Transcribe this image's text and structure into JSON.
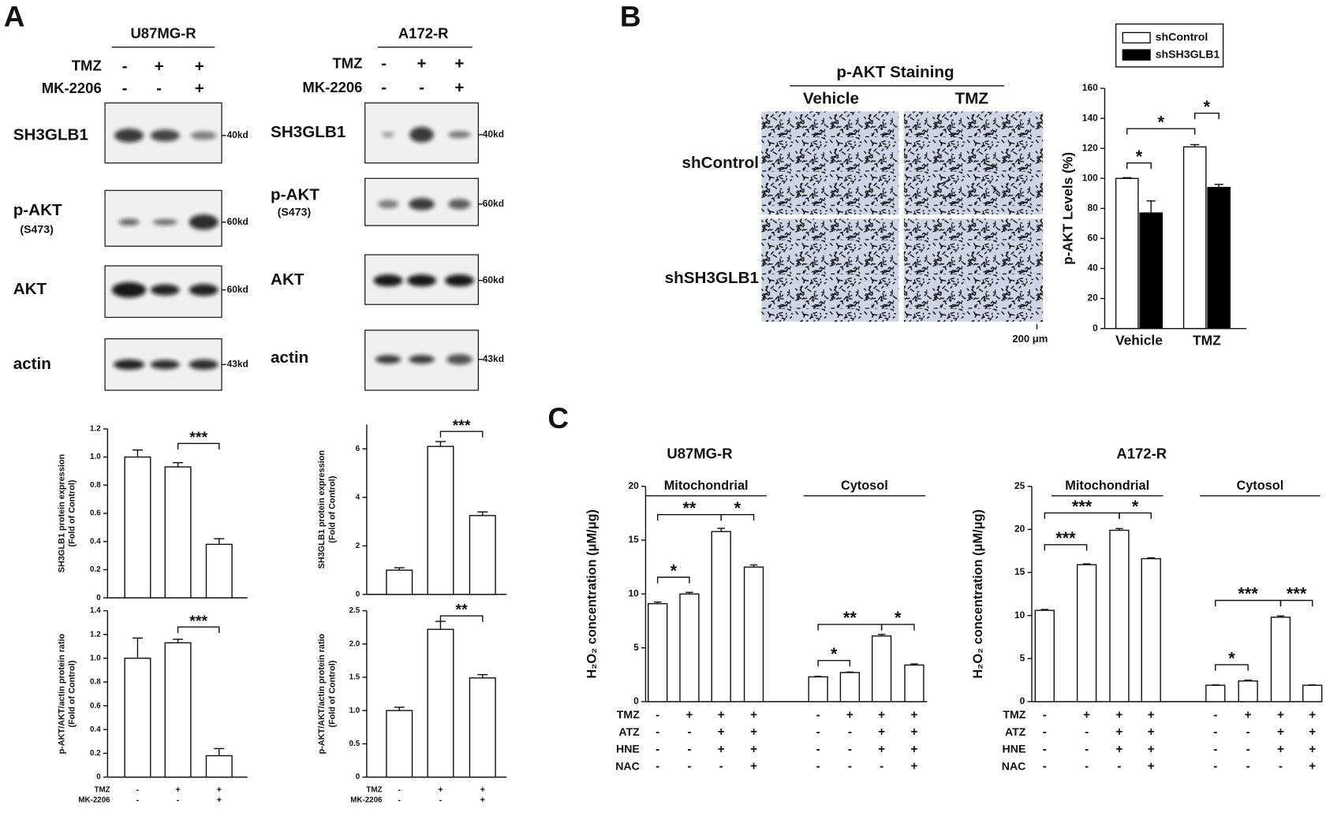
{
  "panels": [
    "A",
    "B",
    "C"
  ],
  "blots": [
    {
      "cell_line": "U87MG-R",
      "treatments": [
        {
          "name": "TMZ",
          "signs": [
            "-",
            "+",
            "+"
          ]
        },
        {
          "name": "MK-2206",
          "signs": [
            "-",
            "-",
            "+"
          ]
        }
      ],
      "rows": [
        {
          "label": "SH3GLB1",
          "marker": "40kd"
        },
        {
          "label": "p-AKT",
          "sublabel": "(S473)",
          "marker": "60kd"
        },
        {
          "label": "AKT",
          "marker": "60kd"
        },
        {
          "label": "actin",
          "marker": "43kd"
        }
      ]
    },
    {
      "cell_line": "A172-R",
      "treatments": [
        {
          "name": "TMZ",
          "signs": [
            "-",
            "+",
            "+"
          ]
        },
        {
          "name": "MK-2206",
          "signs": [
            "-",
            "-",
            "+"
          ]
        }
      ],
      "rows": [
        {
          "label": "SH3GLB1",
          "marker": "40kd"
        },
        {
          "label": "p-AKT",
          "sublabel": "(S473)",
          "marker": "60kd"
        },
        {
          "label": "AKT",
          "marker": "60kd"
        },
        {
          "label": "actin",
          "marker": "43kd"
        }
      ]
    }
  ],
  "staining": {
    "title": "p-AKT Staining",
    "columns": [
      "Vehicle",
      "TMZ"
    ],
    "rows": [
      "shControl",
      "shSH3GLB1"
    ],
    "scale": "200 μm"
  },
  "chart_data": [
    {
      "type": "bar",
      "y_label": [
        "SH3GLB1 protein expression",
        "(Fold of Control)"
      ],
      "series": [
        {
          "color": "#ffffff",
          "values": [
            1.0,
            0.93,
            0.38
          ],
          "errors": [
            0.05,
            0.03,
            0.04
          ]
        }
      ],
      "ylim": [
        0,
        1.2
      ],
      "yticks": [
        0,
        0.2,
        0.4,
        0.6,
        0.8,
        {
          "value": 1,
          "label": "1.0"
        },
        1.2
      ],
      "significance": [
        "***"
      ]
    },
    {
      "type": "bar",
      "y_label": [
        "SH3GLB1 protein expression",
        "(Fold of Control)"
      ],
      "series": [
        {
          "color": "#ffffff",
          "values": [
            1.0,
            6.1,
            3.25
          ],
          "errors": [
            0.1,
            0.2,
            0.15
          ]
        }
      ],
      "ylim": [
        0,
        7
      ],
      "yticks": [
        0,
        2,
        4,
        6
      ],
      "significance": [
        "***"
      ]
    },
    {
      "type": "bar",
      "y_label": [
        "p-AKT/AKT/actin protein ratio",
        "(Fold of Control)"
      ],
      "series": [
        {
          "color": "#ffffff",
          "values": [
            1.0,
            1.13,
            0.18
          ],
          "errors": [
            0.17,
            0.03,
            0.06
          ]
        }
      ],
      "ylim": [
        0,
        1.4
      ],
      "yticks": [
        0,
        0.2,
        0.4,
        0.6,
        0.8,
        {
          "value": 1,
          "label": "1.0"
        },
        1.2,
        1.4
      ],
      "conditions": [
        {
          "name": "TMZ",
          "signs": [
            "-",
            "+",
            "+"
          ]
        },
        {
          "name": "MK-2206",
          "signs": [
            "-",
            "-",
            "+"
          ]
        }
      ],
      "significance": [
        "***"
      ]
    },
    {
      "type": "bar",
      "y_label": [
        "p-AKT/AKT/actin protein ratio",
        "(Fold of Control)"
      ],
      "series": [
        {
          "color": "#ffffff",
          "values": [
            1.0,
            2.22,
            1.49
          ],
          "errors": [
            0.05,
            0.12,
            0.05
          ]
        }
      ],
      "ylim": [
        0,
        2.5
      ],
      "yticks": [
        0,
        0.5,
        {
          "value": 1,
          "label": "1.0"
        },
        1.5,
        {
          "value": 2,
          "label": "2.0"
        },
        2.5
      ],
      "conditions": [
        {
          "name": "TMZ",
          "signs": [
            "-",
            "+",
            "+"
          ]
        },
        {
          "name": "MK-2206",
          "signs": [
            "-",
            "-",
            "+"
          ]
        }
      ],
      "significance": [
        "**"
      ]
    },
    {
      "type": "bar",
      "y_label": [
        "p-AKT Levels (%)"
      ],
      "categories": [
        "Vehicle",
        "TMZ"
      ],
      "series": [
        {
          "name": "shControl",
          "color": "#ffffff",
          "values": [
            100,
            121
          ],
          "errors": [
            0.5,
            1.5
          ]
        },
        {
          "name": "shSH3GLB1",
          "color": "#000000",
          "values": [
            77,
            94
          ],
          "errors": [
            8,
            2
          ]
        }
      ],
      "ylim": [
        0,
        160
      ],
      "yticks": [
        0,
        20,
        40,
        60,
        80,
        100,
        120,
        140,
        160
      ],
      "significance": [
        "*",
        "*",
        "*"
      ]
    },
    {
      "type": "bar",
      "title": "U87MG-R",
      "y_label": [
        "H₂O₂ concentration (μM/μg)"
      ],
      "groups": [
        "Mitochondrial",
        "Cytosol"
      ],
      "series": [
        {
          "color": "#ffffff",
          "values": [
            9.1,
            10.0,
            15.8,
            12.5,
            2.3,
            2.7,
            6.1,
            3.4
          ],
          "errors": [
            0.15,
            0.15,
            0.3,
            0.2,
            0.05,
            0.05,
            0.15,
            0.1
          ]
        }
      ],
      "ylim": [
        0,
        20
      ],
      "yticks": [
        0,
        5,
        10,
        15,
        20
      ],
      "conditions": [
        {
          "name": "TMZ",
          "signs": [
            "-",
            "+",
            "+",
            "+",
            "-",
            "+",
            "+",
            "+"
          ]
        },
        {
          "name": "ATZ",
          "signs": [
            "-",
            "-",
            "+",
            "+",
            "-",
            "-",
            "+",
            "+"
          ]
        },
        {
          "name": "HNE",
          "signs": [
            "-",
            "-",
            "+",
            "+",
            "-",
            "-",
            "+",
            "+"
          ]
        },
        {
          "name": "NAC",
          "signs": [
            "-",
            "-",
            "-",
            "+",
            "-",
            "-",
            "-",
            "+"
          ]
        }
      ],
      "significance": [
        "*",
        "**",
        "*",
        "*",
        "**",
        "*"
      ]
    },
    {
      "type": "bar",
      "title": "A172-R",
      "y_label": [
        "H₂O₂ concentration (μM/μg)"
      ],
      "groups": [
        "Mitochondrial",
        "Cytosol"
      ],
      "series": [
        {
          "color": "#ffffff",
          "values": [
            10.6,
            15.9,
            19.9,
            16.6,
            1.9,
            2.4,
            9.8,
            1.9
          ],
          "errors": [
            0.1,
            0.1,
            0.2,
            0.1,
            0.05,
            0.1,
            0.15,
            0.05
          ]
        }
      ],
      "ylim": [
        0,
        25
      ],
      "yticks": [
        0,
        5,
        10,
        15,
        20,
        25
      ],
      "conditions": [
        {
          "name": "TMZ",
          "signs": [
            "-",
            "+",
            "+",
            "+",
            "-",
            "+",
            "+",
            "+"
          ]
        },
        {
          "name": "ATZ",
          "signs": [
            "-",
            "-",
            "+",
            "+",
            "-",
            "-",
            "+",
            "+"
          ]
        },
        {
          "name": "HNE",
          "signs": [
            "-",
            "-",
            "+",
            "+",
            "-",
            "-",
            "+",
            "+"
          ]
        },
        {
          "name": "NAC",
          "signs": [
            "-",
            "-",
            "-",
            "+",
            "-",
            "-",
            "-",
            "+"
          ]
        }
      ],
      "significance": [
        "***",
        "***",
        "*",
        "*",
        "***",
        "***"
      ]
    }
  ]
}
